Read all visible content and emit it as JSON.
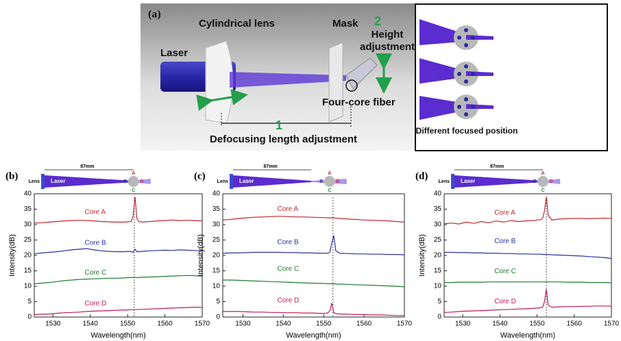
{
  "diagram": {
    "label": "(a)",
    "lens": "Cylindrical lens",
    "mask": "Mask",
    "step2": "2",
    "height": "Height adjustment",
    "laser": "Laser",
    "fiber": "Four-core fiber",
    "step1": "1",
    "defocus": "Defocusing length adjustment",
    "focused": "Different focused position"
  },
  "chart_data": [
    {
      "type": "line",
      "label": "(b)",
      "xlabel": "Wavelength(nm)",
      "ylabel": "Intensity(dB)",
      "xlim": [
        1525,
        1570
      ],
      "xticks": [
        1530,
        1540,
        1550,
        1560,
        1570
      ],
      "ylim": [
        0,
        40
      ],
      "yticks": [
        0,
        5,
        10,
        15,
        20,
        25,
        30,
        35,
        40
      ],
      "reference_x": 1551.8,
      "inset": {
        "lens": "Lens",
        "laser": "Laser",
        "distance": "87mm",
        "cores": [
          "A",
          "B",
          "C",
          "D"
        ]
      },
      "x": [
        1525,
        1527,
        1529,
        1531,
        1533,
        1535,
        1537,
        1539,
        1541,
        1543,
        1545,
        1547,
        1549,
        1550,
        1551,
        1551.5,
        1552,
        1552.5,
        1553,
        1554,
        1556,
        1558,
        1560,
        1562,
        1564,
        1566,
        1568,
        1570
      ],
      "series": [
        {
          "name": "Core A",
          "color": "#c0272d",
          "values": [
            30.5,
            30.6,
            30.8,
            31,
            31.2,
            31.3,
            31.4,
            31.3,
            31.2,
            31,
            30.9,
            30.8,
            30.8,
            30.9,
            31,
            33,
            39,
            32,
            31,
            30.8,
            31,
            31.2,
            31.3,
            31.5,
            31.3,
            31.4,
            31.3,
            31.2
          ]
        },
        {
          "name": "Core B",
          "color": "#2b2ea0",
          "values": [
            20.5,
            20.8,
            21,
            21.2,
            21.5,
            21.8,
            22,
            22.2,
            21.8,
            21.5,
            21.3,
            21.2,
            21.2,
            21.3,
            21.2,
            21,
            22,
            21.2,
            21.2,
            21.3,
            21.5,
            21.6,
            21.7,
            21.6,
            21.8,
            21.7,
            21.6,
            21.5
          ]
        },
        {
          "name": "Core C",
          "color": "#1e7a2e",
          "values": [
            10.8,
            11,
            11.2,
            11.5,
            11.8,
            12,
            12.2,
            12.3,
            12.4,
            12.5,
            12.6,
            12.6,
            12.7,
            12.8,
            12.8,
            12.8,
            12.9,
            12.8,
            12.8,
            12.9,
            13,
            13.1,
            13.2,
            13.3,
            13.4,
            13.5,
            13.4,
            13.3
          ]
        },
        {
          "name": "Core D",
          "color": "#c2185b",
          "values": [
            0.8,
            0.9,
            1,
            1.2,
            1.4,
            1.5,
            1.6,
            1.8,
            1.9,
            2,
            2.1,
            2.2,
            2.3,
            2.3,
            2.4,
            2.4,
            2.4,
            2.4,
            2.5,
            2.5,
            2.6,
            2.7,
            2.8,
            2.9,
            3,
            3.1,
            3.2,
            3.1
          ]
        }
      ]
    },
    {
      "type": "line",
      "label": "(c)",
      "xlabel": "Wavelength(nm)",
      "ylabel": "Intensity(dB)",
      "xlim": [
        1525,
        1570
      ],
      "xticks": [
        1530,
        1540,
        1550,
        1560,
        1570
      ],
      "ylim": [
        0,
        40
      ],
      "yticks": [
        0,
        5,
        10,
        15,
        20,
        25,
        30,
        35,
        40
      ],
      "reference_x": 1552.3,
      "inset": {
        "lens": "Lens",
        "laser": "Laser",
        "distance": "87mm",
        "cores": [
          "A",
          "B",
          "C",
          "D"
        ]
      },
      "x": [
        1525,
        1527,
        1529,
        1531,
        1533,
        1535,
        1537,
        1539,
        1541,
        1543,
        1545,
        1547,
        1549,
        1550,
        1551,
        1551.5,
        1552,
        1552.5,
        1553,
        1554,
        1556,
        1558,
        1560,
        1562,
        1564,
        1566,
        1568,
        1570
      ],
      "series": [
        {
          "name": "Core A",
          "color": "#c0272d",
          "values": [
            31.5,
            31.7,
            32,
            32.2,
            32.4,
            32.5,
            32.6,
            32.7,
            32.6,
            32.5,
            32.5,
            32.4,
            32.3,
            32.3,
            32.2,
            32.2,
            32.2,
            32.2,
            32.1,
            32,
            31.8,
            31.7,
            31.5,
            31.4,
            31.3,
            31.2,
            31,
            30.8
          ]
        },
        {
          "name": "Core B",
          "color": "#2b2ea0",
          "values": [
            20.7,
            20.8,
            20.8,
            20.9,
            21,
            21,
            21,
            21,
            20.9,
            20.9,
            20.8,
            20.8,
            20.7,
            20.7,
            20.7,
            21,
            24,
            26.5,
            21.5,
            20.7,
            20.6,
            20.5,
            20.5,
            20.4,
            20.4,
            20.3,
            20.3,
            20.2
          ]
        },
        {
          "name": "Core C",
          "color": "#1e7a2e",
          "values": [
            12,
            12,
            11.9,
            11.8,
            11.7,
            11.6,
            11.5,
            11.4,
            11.3,
            11.2,
            11.1,
            11,
            10.9,
            10.9,
            10.8,
            10.8,
            10.8,
            10.8,
            10.7,
            10.7,
            10.6,
            10.5,
            10.4,
            10.3,
            10.2,
            10.1,
            10,
            9.8
          ]
        },
        {
          "name": "Core D",
          "color": "#c2185b",
          "values": [
            1.8,
            1.8,
            1.8,
            1.7,
            1.6,
            1.6,
            1.5,
            1.5,
            1.4,
            1.4,
            1.3,
            1.3,
            1.2,
            1.2,
            1.3,
            2,
            4.5,
            1.5,
            1.1,
            1,
            0.9,
            0.8,
            0.8,
            0.7,
            0.7,
            0.6,
            0.5,
            0.5
          ]
        }
      ]
    },
    {
      "type": "line",
      "label": "(d)",
      "xlabel": "Wavelength(nm)",
      "ylabel": "Intensity(dB)",
      "xlim": [
        1525,
        1570
      ],
      "xticks": [
        1530,
        1540,
        1550,
        1560,
        1570
      ],
      "ylim": [
        0,
        40
      ],
      "yticks": [
        0,
        5,
        10,
        15,
        20,
        25,
        30,
        35,
        40
      ],
      "reference_x": 1552.5,
      "inset": {
        "lens": "Lens",
        "laser": "Laser",
        "distance": "87mm",
        "cores": [
          "A",
          "B",
          "C",
          "D"
        ]
      },
      "x": [
        1525,
        1527,
        1529,
        1531,
        1533,
        1535,
        1537,
        1539,
        1541,
        1543,
        1545,
        1547,
        1549,
        1550,
        1551,
        1551.5,
        1552,
        1552.5,
        1553,
        1554,
        1556,
        1558,
        1560,
        1562,
        1564,
        1566,
        1568,
        1570
      ],
      "series": [
        {
          "name": "Core A",
          "color": "#c0272d",
          "values": [
            30.3,
            30.5,
            30.2,
            30.8,
            30.4,
            31,
            30.6,
            31.2,
            30.8,
            31.3,
            31,
            31.2,
            31.3,
            31.5,
            31.6,
            32,
            34.5,
            39,
            33,
            31.5,
            31.8,
            31.9,
            32,
            32,
            31.9,
            32,
            32.1,
            32
          ]
        },
        {
          "name": "Core B",
          "color": "#2b2ea0",
          "values": [
            21,
            21,
            20.9,
            20.9,
            20.8,
            20.8,
            20.7,
            20.7,
            20.6,
            20.6,
            20.5,
            20.5,
            20.4,
            20.4,
            20.4,
            20.3,
            20.3,
            20.3,
            20.3,
            20.2,
            20.1,
            20,
            19.9,
            19.8,
            19.6,
            19.5,
            19.3,
            19
          ]
        },
        {
          "name": "Core C",
          "color": "#1e7a2e",
          "values": [
            11.2,
            11.2,
            11.3,
            11.3,
            11.3,
            11.3,
            11.4,
            11.4,
            11.4,
            11.4,
            11.4,
            11.4,
            11.4,
            11.4,
            11.4,
            11.4,
            11.4,
            11.4,
            11.4,
            11.4,
            11.4,
            11.3,
            11.3,
            11.3,
            11.2,
            11.2,
            11.2,
            11.1
          ]
        },
        {
          "name": "Core D",
          "color": "#c2185b",
          "values": [
            1.5,
            1.6,
            1.8,
            1.9,
            2,
            2.1,
            2.2,
            2.3,
            2.4,
            2.5,
            2.6,
            2.7,
            2.8,
            2.9,
            3,
            3.2,
            5,
            9,
            3.8,
            3.2,
            3.3,
            3.4,
            3.4,
            3.5,
            3.5,
            3.6,
            3.6,
            3.5
          ]
        }
      ]
    }
  ]
}
